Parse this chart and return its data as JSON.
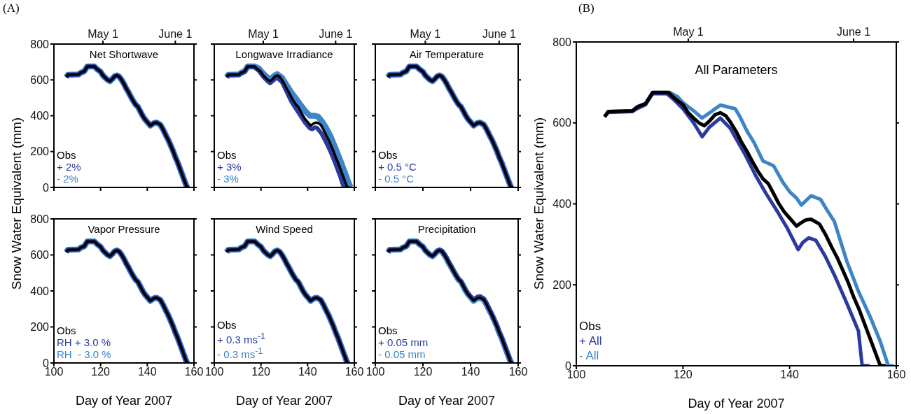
{
  "chart_data": [
    {
      "type": "line",
      "title": "Net Shortwave",
      "ylabel": "Snow Water Equivalent (mm)",
      "annotations": [
        "(A)"
      ],
      "xlim": [
        100,
        160
      ],
      "xticks": [
        100,
        120,
        140,
        160
      ],
      "ylim": [
        0,
        800
      ],
      "yticks": [
        0,
        200,
        400,
        600,
        800
      ],
      "x2lim": [
        "--04-10",
        "--06-09"
      ],
      "x2ticks": [
        {
          "value": "--05-01",
          "label": "May 1"
        },
        {
          "value": "--06-01",
          "label": "June 1"
        }
      ],
      "tick_labels": "y",
      "legend": "bottom left",
      "series": [
        {
          "name": "Obs",
          "color": "#000000",
          "x": [
            105.3,
            106,
            110.5,
            111.5,
            113,
            114.3,
            117.3,
            118.5,
            120,
            121,
            122,
            123,
            124,
            125,
            126,
            127,
            128,
            129,
            130,
            131,
            132,
            133,
            134,
            135,
            136,
            137,
            138,
            139,
            140,
            141.3,
            142,
            143,
            144,
            145.6,
            146.7,
            148,
            149,
            150,
            151,
            152,
            153,
            154,
            155,
            156,
            157,
            158
          ],
          "values": [
            615,
            628,
            630,
            640,
            648,
            675,
            675,
            660,
            645,
            625,
            612,
            600,
            593,
            605,
            620,
            625,
            618,
            600,
            578,
            552,
            530,
            505,
            482,
            462,
            450,
            425,
            400,
            380,
            365,
            345,
            352,
            360,
            362,
            350,
            325,
            290,
            265,
            235,
            205,
            170,
            140,
            105,
            70,
            35,
            0,
            0
          ]
        },
        {
          "name": "+ 2%",
          "color": "#2b3a9e",
          "x": [
            105.3,
            106,
            110.5,
            111.5,
            113,
            114.3,
            117.3,
            118.5,
            120,
            121,
            122,
            123,
            124,
            125,
            126,
            127,
            128,
            129,
            130,
            131,
            132,
            133,
            134,
            135,
            136,
            137,
            138,
            139,
            140,
            141.3,
            142,
            143,
            144,
            145.6,
            146.7,
            148,
            149,
            150,
            151,
            152,
            153,
            154,
            155,
            156,
            157,
            158
          ],
          "values": [
            615,
            628,
            630,
            640,
            648,
            675,
            675,
            660,
            645,
            625,
            612,
            600,
            593,
            605,
            620,
            625,
            618,
            600,
            578,
            552,
            530,
            505,
            482,
            462,
            450,
            425,
            400,
            380,
            365,
            345,
            352,
            360,
            362,
            350,
            325,
            290,
            265,
            235,
            205,
            170,
            140,
            105,
            70,
            35,
            0,
            0
          ]
        },
        {
          "name": "- 2%",
          "color": "#3d85c6",
          "x": [
            105.3,
            106,
            110.5,
            111.5,
            113,
            114.3,
            117.3,
            118.5,
            120,
            121,
            122,
            123,
            124,
            125,
            126,
            127,
            128,
            129,
            130,
            131,
            132,
            133,
            134,
            135,
            136,
            137,
            138,
            139,
            140,
            141.3,
            142,
            143,
            144,
            145.6,
            146.7,
            148,
            149,
            150,
            151,
            152,
            153,
            154,
            155,
            156,
            157,
            158
          ],
          "values": [
            615,
            628,
            630,
            640,
            648,
            675,
            675,
            660,
            645,
            625,
            612,
            600,
            593,
            605,
            620,
            625,
            618,
            600,
            578,
            552,
            530,
            505,
            482,
            462,
            450,
            425,
            400,
            380,
            365,
            345,
            352,
            360,
            362,
            350,
            325,
            290,
            265,
            235,
            205,
            170,
            140,
            105,
            70,
            35,
            0,
            0
          ]
        }
      ]
    },
    {
      "type": "line",
      "title": "Longwave Irradiance",
      "xlim": [
        100,
        160
      ],
      "xticks": [
        100,
        120,
        140,
        160
      ],
      "ylim": [
        0,
        800
      ],
      "yticks": [
        0,
        200,
        400,
        600,
        800
      ],
      "x2lim": [
        "--04-10",
        "--06-09"
      ],
      "x2ticks": [
        {
          "value": "--05-01",
          "label": "May 1"
        },
        {
          "value": "--06-01",
          "label": "June 1"
        }
      ],
      "tick_labels": false,
      "legend": "bottom left",
      "series": [
        {
          "name": "Obs",
          "color": "#000000",
          "x": [
            105.3,
            106,
            110.5,
            111.5,
            113,
            114.3,
            117.3,
            118.5,
            120,
            121,
            122,
            123,
            124,
            125,
            126,
            127,
            128,
            129,
            130,
            131,
            132,
            133,
            134,
            135,
            136,
            137,
            138,
            139,
            140,
            141.3,
            142,
            143,
            144,
            145.6,
            146.7,
            148,
            149,
            150,
            151,
            152,
            153,
            154,
            155,
            156,
            157,
            158
          ],
          "values": [
            615,
            628,
            630,
            640,
            648,
            675,
            675,
            660,
            645,
            625,
            612,
            600,
            593,
            605,
            620,
            625,
            618,
            600,
            578,
            552,
            530,
            505,
            482,
            462,
            450,
            425,
            400,
            380,
            365,
            345,
            352,
            360,
            362,
            350,
            325,
            290,
            265,
            235,
            205,
            170,
            140,
            105,
            70,
            35,
            0,
            0
          ]
        },
        {
          "name": "+ 3%",
          "color": "#2b3a9e",
          "x": [
            105.3,
            106,
            110.5,
            111.5,
            113,
            114.3,
            117,
            119,
            121,
            123,
            124,
            126,
            127,
            129,
            131,
            133,
            135,
            137,
            139,
            141,
            142,
            143,
            144,
            146,
            148,
            150,
            152,
            154,
            155.5,
            157
          ],
          "values": [
            615,
            626,
            628,
            636,
            645,
            672,
            672,
            652,
            618,
            590,
            582,
            605,
            612,
            588,
            535,
            480,
            440,
            400,
            360,
            330,
            325,
            335,
            332,
            300,
            250,
            195,
            130,
            60,
            0,
            0
          ]
        },
        {
          "name": "- 3%",
          "color": "#3d85c6",
          "x": [
            105.3,
            106,
            110.5,
            111.5,
            113,
            114.3,
            117.3,
            119,
            121,
            123,
            124,
            126,
            127,
            129,
            131,
            133,
            135,
            137,
            139,
            141,
            143,
            144.5,
            146,
            148,
            150,
            152,
            154,
            156,
            158,
            158.5,
            159
          ],
          "values": [
            615,
            628,
            630,
            640,
            648,
            675,
            675,
            665,
            635,
            610,
            605,
            625,
            632,
            612,
            570,
            530,
            495,
            460,
            425,
            400,
            400,
            395,
            370,
            330,
            280,
            215,
            150,
            80,
            10,
            0,
            0
          ]
        }
      ]
    },
    {
      "type": "line",
      "title": "Air Temperature",
      "xlim": [
        100,
        160
      ],
      "xticks": [
        100,
        120,
        140,
        160
      ],
      "ylim": [
        0,
        800
      ],
      "yticks": [
        0,
        200,
        400,
        600,
        800
      ],
      "x2lim": [
        "--04-10",
        "--06-09"
      ],
      "x2ticks": [
        {
          "value": "--05-01",
          "label": "May 1"
        },
        {
          "value": "--06-01",
          "label": "June 1"
        }
      ],
      "tick_labels": false,
      "legend": "bottom left",
      "series": [
        {
          "name": "Obs",
          "color": "#000000",
          "x": [
            105.3,
            106,
            110.5,
            111.5,
            113,
            114.3,
            117.3,
            118.5,
            120,
            121,
            122,
            123,
            124,
            125,
            126,
            127,
            128,
            129,
            130,
            131,
            132,
            133,
            134,
            135,
            136,
            137,
            138,
            139,
            140,
            141.3,
            142,
            143,
            144,
            145.6,
            146.7,
            148,
            149,
            150,
            151,
            152,
            153,
            154,
            155,
            156,
            157,
            158
          ],
          "values": [
            615,
            628,
            630,
            640,
            648,
            675,
            675,
            660,
            645,
            625,
            612,
            600,
            593,
            605,
            620,
            625,
            618,
            600,
            578,
            552,
            530,
            505,
            482,
            462,
            450,
            425,
            400,
            380,
            365,
            345,
            352,
            360,
            362,
            350,
            325,
            290,
            265,
            235,
            205,
            170,
            140,
            105,
            70,
            35,
            0,
            0
          ]
        },
        {
          "name": "+ 0.5 °C",
          "color": "#2b3a9e",
          "x": [
            105.3,
            106,
            110.5,
            111.5,
            113,
            114.3,
            117.3,
            118.5,
            120,
            121,
            122,
            123,
            124,
            125,
            126,
            127,
            128,
            129,
            130,
            131,
            132,
            133,
            134,
            135,
            136,
            137,
            138,
            139,
            140,
            141.3,
            142,
            143,
            144,
            145.6,
            146.7,
            148,
            149,
            150,
            151,
            152,
            153,
            154,
            155,
            156,
            157,
            158
          ],
          "values": [
            615,
            628,
            630,
            640,
            648,
            675,
            675,
            660,
            645,
            625,
            612,
            600,
            593,
            605,
            620,
            625,
            618,
            600,
            578,
            552,
            530,
            505,
            482,
            462,
            450,
            425,
            400,
            380,
            365,
            345,
            352,
            360,
            362,
            350,
            325,
            290,
            265,
            235,
            205,
            170,
            140,
            105,
            70,
            35,
            0,
            0
          ]
        },
        {
          "name": "- 0.5 °C",
          "color": "#3d85c6",
          "x": [
            105.3,
            106,
            110.5,
            111.5,
            113,
            114.3,
            117.3,
            118.5,
            120,
            121,
            122,
            123,
            124,
            125,
            126,
            127,
            128,
            129,
            130,
            131,
            132,
            133,
            134,
            135,
            136,
            137,
            138,
            139,
            140,
            141.3,
            142,
            143,
            144,
            145.6,
            146.7,
            148,
            149,
            150,
            151,
            152,
            153,
            154,
            155,
            156,
            157,
            158
          ],
          "values": [
            615,
            628,
            630,
            640,
            648,
            675,
            675,
            660,
            645,
            625,
            612,
            600,
            593,
            605,
            620,
            625,
            618,
            600,
            578,
            552,
            530,
            505,
            482,
            462,
            450,
            425,
            400,
            380,
            365,
            345,
            352,
            360,
            362,
            350,
            325,
            290,
            265,
            235,
            205,
            170,
            140,
            105,
            70,
            35,
            0,
            0
          ]
        }
      ]
    },
    {
      "type": "line",
      "title": "Vapor Pressure",
      "xlabel": "Day of Year 2007",
      "xlim": [
        100,
        160
      ],
      "xticks": [
        100,
        120,
        140,
        160
      ],
      "ylim": [
        0,
        800
      ],
      "yticks": [
        0,
        200,
        400,
        600,
        800
      ],
      "legend": "bottom left",
      "series": [
        {
          "name": "Obs",
          "color": "#000000",
          "x": [
            105.3,
            106,
            110.5,
            111.5,
            113,
            114.3,
            117.3,
            118.5,
            120,
            121,
            122,
            123,
            124,
            125,
            126,
            127,
            128,
            129,
            130,
            131,
            132,
            133,
            134,
            135,
            136,
            137,
            138,
            139,
            140,
            141.3,
            142,
            143,
            144,
            145.6,
            146.7,
            148,
            149,
            150,
            151,
            152,
            153,
            154,
            155,
            156,
            157,
            158
          ],
          "values": [
            615,
            628,
            630,
            640,
            648,
            675,
            675,
            660,
            645,
            625,
            612,
            600,
            593,
            605,
            620,
            625,
            618,
            600,
            578,
            552,
            530,
            505,
            482,
            462,
            450,
            425,
            400,
            380,
            365,
            345,
            352,
            360,
            362,
            350,
            325,
            290,
            265,
            235,
            205,
            170,
            140,
            105,
            70,
            35,
            0,
            0
          ]
        },
        {
          "name": "RH + 3.0 %",
          "color": "#2b3a9e",
          "x": [
            105.3,
            106,
            110.5,
            111.5,
            113,
            114.3,
            117.3,
            118.5,
            120,
            121,
            122,
            123,
            124,
            125,
            126,
            127,
            128,
            129,
            130,
            131,
            132,
            133,
            134,
            135,
            136,
            137,
            138,
            139,
            140,
            141.3,
            142,
            143,
            144,
            145.6,
            146.7,
            148,
            149,
            150,
            151,
            152,
            153,
            154,
            155,
            156,
            157,
            158
          ],
          "values": [
            615,
            628,
            630,
            640,
            648,
            675,
            675,
            660,
            645,
            625,
            612,
            600,
            593,
            605,
            620,
            625,
            618,
            600,
            578,
            552,
            530,
            505,
            482,
            462,
            450,
            425,
            400,
            380,
            365,
            345,
            352,
            360,
            362,
            350,
            325,
            290,
            265,
            235,
            205,
            170,
            140,
            105,
            70,
            35,
            0,
            0
          ]
        },
        {
          "name": "RH  - 3.0 %",
          "color": "#3d85c6",
          "x": [
            105.3,
            106,
            110.5,
            111.5,
            113,
            114.3,
            117.3,
            118.5,
            120,
            121,
            122,
            123,
            124,
            125,
            126,
            127,
            128,
            129,
            130,
            131,
            132,
            133,
            134,
            135,
            136,
            137,
            138,
            139,
            140,
            141.3,
            142,
            143,
            144,
            145.6,
            146.7,
            148,
            149,
            150,
            151,
            152,
            153,
            154,
            155,
            156,
            157,
            158
          ],
          "values": [
            615,
            628,
            630,
            640,
            648,
            675,
            675,
            660,
            645,
            625,
            612,
            600,
            593,
            605,
            620,
            625,
            618,
            600,
            578,
            552,
            530,
            505,
            482,
            462,
            450,
            425,
            400,
            380,
            365,
            345,
            352,
            360,
            362,
            350,
            325,
            290,
            265,
            235,
            205,
            170,
            140,
            105,
            70,
            35,
            0,
            0
          ]
        }
      ]
    },
    {
      "type": "line",
      "title": "Wind Speed",
      "xlabel": "Day of Year 2007",
      "xlim": [
        100,
        160
      ],
      "xticks": [
        100,
        120,
        140,
        160
      ],
      "ylim": [
        0,
        800
      ],
      "yticks": [
        0,
        200,
        400,
        600,
        800
      ],
      "tick_labels": "x",
      "legend": "bottom left",
      "series": [
        {
          "name": "Obs",
          "color": "#000000",
          "x": [
            105.3,
            106,
            110.5,
            111.5,
            113,
            114.3,
            117.3,
            118.5,
            120,
            121,
            122,
            123,
            124,
            125,
            126,
            127,
            128,
            129,
            130,
            131,
            132,
            133,
            134,
            135,
            136,
            137,
            138,
            139,
            140,
            141.3,
            142,
            143,
            144,
            145.6,
            146.7,
            148,
            149,
            150,
            151,
            152,
            153,
            154,
            155,
            156,
            157,
            158
          ],
          "values": [
            615,
            628,
            630,
            640,
            648,
            675,
            675,
            660,
            645,
            625,
            612,
            600,
            593,
            605,
            620,
            625,
            618,
            600,
            578,
            552,
            530,
            505,
            482,
            462,
            450,
            425,
            400,
            380,
            365,
            345,
            352,
            360,
            362,
            350,
            325,
            290,
            265,
            235,
            205,
            170,
            140,
            105,
            70,
            35,
            0,
            0
          ]
        },
        {
          "name": "+ 0.3 ms$^{-1}$",
          "color": "#2b3a9e",
          "x": [
            105.3,
            106,
            110.5,
            111.5,
            113,
            114.3,
            117.3,
            118.5,
            120,
            121,
            122,
            123,
            124,
            125,
            126,
            127,
            128,
            129,
            130,
            131,
            132,
            133,
            134,
            135,
            136,
            137,
            138,
            139,
            140,
            141.3,
            142,
            143,
            144,
            145.6,
            146.7,
            148,
            149,
            150,
            151,
            152,
            153,
            154,
            155,
            156,
            157,
            158
          ],
          "values": [
            615,
            628,
            630,
            640,
            648,
            675,
            675,
            660,
            645,
            625,
            612,
            600,
            593,
            605,
            620,
            625,
            618,
            600,
            578,
            552,
            530,
            505,
            482,
            462,
            450,
            425,
            400,
            380,
            365,
            345,
            352,
            360,
            362,
            350,
            325,
            290,
            265,
            235,
            205,
            170,
            140,
            105,
            70,
            35,
            0,
            0
          ]
        },
        {
          "name": "- 0.3 ms$^{-1}$",
          "color": "#3d85c6",
          "x": [
            105.3,
            106,
            110.5,
            111.5,
            113,
            114.3,
            117.3,
            118.5,
            120,
            121,
            122,
            123,
            124,
            125,
            126,
            127,
            128,
            129,
            130,
            131,
            132,
            133,
            134,
            135,
            136,
            137,
            138,
            139,
            140,
            141.3,
            142,
            143,
            144,
            145.6,
            146.7,
            148,
            149,
            150,
            151,
            152,
            153,
            154,
            155,
            156,
            157,
            158
          ],
          "values": [
            615,
            628,
            630,
            640,
            648,
            675,
            675,
            660,
            645,
            625,
            612,
            600,
            593,
            605,
            620,
            625,
            618,
            600,
            578,
            552,
            530,
            505,
            482,
            462,
            450,
            425,
            400,
            380,
            365,
            345,
            352,
            360,
            362,
            350,
            325,
            290,
            265,
            235,
            205,
            170,
            140,
            105,
            70,
            35,
            0,
            0
          ]
        }
      ]
    },
    {
      "type": "line",
      "title": "Precipitation",
      "xlabel": "Day of Year 2007",
      "xlim": [
        100,
        160
      ],
      "xticks": [
        100,
        120,
        140,
        160
      ],
      "ylim": [
        0,
        800
      ],
      "yticks": [
        0,
        200,
        400,
        600,
        800
      ],
      "tick_labels": "x",
      "legend": "bottom left",
      "series": [
        {
          "name": "Obs",
          "color": "#000000",
          "x": [
            105.3,
            106,
            110.5,
            111.5,
            113,
            114.3,
            117.3,
            118.5,
            120,
            121,
            122,
            123,
            124,
            125,
            126,
            127,
            128,
            129,
            130,
            131,
            132,
            133,
            134,
            135,
            136,
            137,
            138,
            139,
            140,
            141.3,
            142,
            143,
            144,
            145.6,
            146.7,
            148,
            149,
            150,
            151,
            152,
            153,
            154,
            155,
            156,
            157,
            158
          ],
          "values": [
            615,
            628,
            630,
            640,
            648,
            675,
            675,
            660,
            645,
            625,
            612,
            600,
            593,
            605,
            620,
            625,
            618,
            600,
            578,
            552,
            530,
            505,
            482,
            462,
            450,
            425,
            400,
            380,
            365,
            345,
            352,
            360,
            362,
            350,
            325,
            290,
            265,
            235,
            205,
            170,
            140,
            105,
            70,
            35,
            0,
            0
          ]
        },
        {
          "name": "+ 0.05 mm",
          "color": "#2b3a9e",
          "x": [
            105.3,
            106,
            110.5,
            111.5,
            113,
            114.3,
            117.3,
            118.5,
            120,
            121,
            122,
            123,
            124,
            125,
            126,
            127,
            128,
            129,
            130,
            131,
            132,
            133,
            134,
            135,
            136,
            137,
            138,
            139,
            140,
            141.3,
            142,
            143,
            144,
            145.6,
            146.7,
            148,
            149,
            150,
            151,
            152,
            153,
            154,
            155,
            156,
            157,
            158
          ],
          "values": [
            615,
            628,
            630,
            640,
            648,
            675,
            675,
            660,
            645,
            625,
            612,
            600,
            593,
            605,
            622,
            630,
            622,
            604,
            582,
            556,
            534,
            509,
            486,
            466,
            454,
            429,
            404,
            384,
            370,
            352,
            360,
            368,
            370,
            358,
            332,
            296,
            270,
            240,
            210,
            175,
            145,
            110,
            75,
            40,
            0,
            0
          ]
        },
        {
          "name": "- 0.05 mm",
          "color": "#3d85c6",
          "x": [
            105.3,
            106,
            110.5,
            111.5,
            113,
            114.3,
            117.3,
            118.5,
            120,
            121,
            122,
            123,
            124,
            125,
            126,
            127,
            128,
            129,
            130,
            131,
            132,
            133,
            134,
            135,
            136,
            137,
            138,
            139,
            140,
            141.3,
            142,
            143,
            144,
            145.6,
            146.7,
            148,
            149,
            150,
            151,
            152,
            153,
            154,
            155,
            156,
            157,
            158
          ],
          "values": [
            615,
            628,
            630,
            640,
            648,
            675,
            675,
            660,
            645,
            625,
            612,
            600,
            593,
            605,
            620,
            625,
            618,
            600,
            578,
            552,
            530,
            505,
            482,
            462,
            450,
            425,
            400,
            380,
            365,
            345,
            352,
            360,
            362,
            350,
            325,
            290,
            265,
            235,
            205,
            170,
            140,
            105,
            70,
            35,
            0,
            0
          ]
        }
      ]
    },
    {
      "type": "line",
      "title": "All Parameters",
      "xlabel": "Day of Year 2007",
      "ylabel": "Snow Water Equivalent (mm)",
      "annotations": [
        "(B)"
      ],
      "xlim": [
        100,
        160
      ],
      "xticks": [
        100,
        120,
        140,
        160
      ],
      "ylim": [
        0,
        800
      ],
      "yticks": [
        0,
        200,
        400,
        600,
        800
      ],
      "x2lim": [
        "--04-10",
        "--06-09"
      ],
      "x2ticks": [
        {
          "value": "--05-01",
          "label": "May 1"
        },
        {
          "value": "--06-01",
          "label": "June 1"
        }
      ],
      "legend": "bottom left",
      "series": [
        {
          "name": "Obs",
          "color": "#000000",
          "x": [
            105.3,
            106,
            110.5,
            111.5,
            113,
            114.3,
            117.3,
            118.5,
            120,
            121,
            122,
            123,
            124,
            125,
            126,
            127,
            128,
            129,
            130,
            131,
            132,
            133,
            134,
            135,
            136,
            137,
            138,
            139,
            140,
            141.3,
            142,
            143,
            144,
            145.6,
            146.7,
            148,
            149,
            150,
            151,
            152,
            153,
            154,
            155,
            156,
            157,
            158
          ],
          "values": [
            615,
            628,
            630,
            640,
            648,
            675,
            675,
            660,
            645,
            625,
            612,
            600,
            593,
            605,
            620,
            625,
            618,
            600,
            578,
            552,
            530,
            505,
            482,
            462,
            450,
            425,
            400,
            380,
            365,
            345,
            352,
            360,
            362,
            350,
            325,
            290,
            265,
            235,
            205,
            170,
            140,
            105,
            70,
            35,
            0,
            0
          ]
        },
        {
          "name": "+ All",
          "color": "#2b3a9e",
          "x": [
            105.3,
            106,
            110.5,
            111.5,
            113,
            114.3,
            117,
            118.5,
            120,
            122,
            123.6,
            125,
            127,
            128.9,
            130,
            131.6,
            133.8,
            135.6,
            137.8,
            139.6,
            141.6,
            142.5,
            143.6,
            144.9,
            146.7,
            148.4,
            150.7,
            152.9,
            153.6,
            155
          ],
          "values": [
            615,
            626,
            628,
            636,
            645,
            672,
            672,
            655,
            635,
            600,
            566,
            590,
            612,
            586,
            560,
            523,
            466,
            425,
            379,
            339,
            287,
            305,
            316,
            310,
            270,
            224,
            155,
            86,
            0,
            0
          ]
        },
        {
          "name": "- All",
          "color": "#3d85c6",
          "x": [
            105.3,
            106,
            110.5,
            111.5,
            113,
            114.3,
            117.5,
            119,
            120,
            122,
            123.6,
            125,
            127,
            129.8,
            130.7,
            132,
            133.3,
            135,
            137,
            138.7,
            140,
            141.3,
            142.2,
            144,
            145.8,
            147,
            148.4,
            150.7,
            152.9,
            155.1,
            157,
            158.5,
            159.5
          ],
          "values": [
            615,
            628,
            630,
            640,
            648,
            675,
            675,
            665,
            650,
            630,
            612,
            625,
            644,
            635,
            615,
            580,
            552,
            506,
            494,
            454,
            430,
            414,
            397,
            420,
            411,
            385,
            356,
            259,
            184,
            121,
            60,
            0,
            0
          ]
        }
      ]
    }
  ]
}
